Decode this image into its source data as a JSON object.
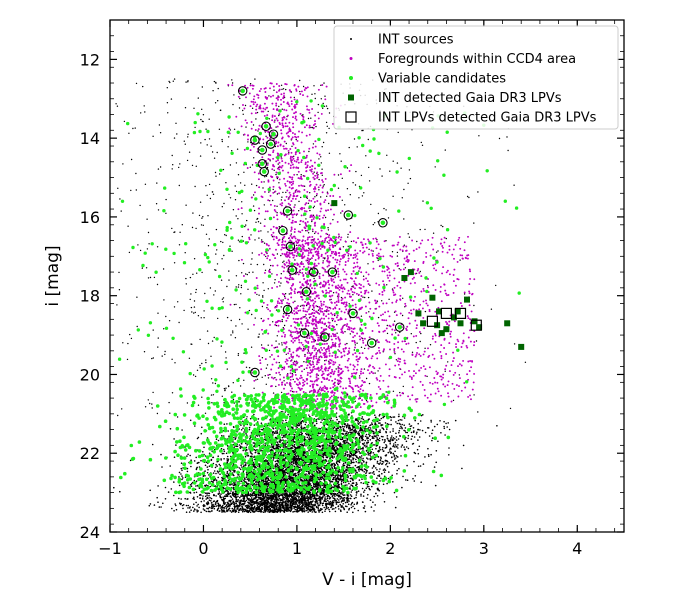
{
  "chart_data": {
    "type": "scatter",
    "xlabel": "V - i [mag]",
    "ylabel": "i [mag]",
    "xlim": [
      -1.0,
      4.5
    ],
    "ylim": [
      24,
      11
    ],
    "y_inverted": true,
    "xticks": [
      "−1",
      "0",
      "1",
      "2",
      "3",
      "4"
    ],
    "yticks": [
      "12",
      "14",
      "16",
      "18",
      "20",
      "22",
      "24"
    ],
    "legend_position": "top-right",
    "series": [
      {
        "name": "INT sources",
        "color": "#000000",
        "marker": "dot",
        "approx_count": 9000,
        "distribution_summary": [
          {
            "region": "dense red-giant/faint clump",
            "x_range": [
              0.0,
              2.2
            ],
            "y_range": [
              21.0,
              23.5
            ]
          },
          {
            "region": "sparse bright field",
            "x_range": [
              -1.0,
              4.0
            ],
            "y_range": [
              12.5,
              21.0
            ]
          }
        ]
      },
      {
        "name": "Foregrounds within CCD4 area",
        "color": "#c000c0",
        "marker": "dot",
        "approx_count": 3000,
        "distribution_summary": [
          {
            "region": "foreground plume",
            "x_range": [
              0.4,
              2.9
            ],
            "y_range": [
              12.4,
              21.0
            ]
          }
        ]
      },
      {
        "name": "Variable candidates",
        "color": "#22ee22",
        "marker": "dot",
        "approx_count": 1400,
        "distribution_summary": [
          {
            "region": "faint band",
            "x_range": [
              -0.5,
              2.8
            ],
            "y_range": [
              20.5,
              23.0
            ]
          },
          {
            "region": "scattered",
            "x_range": [
              -1.0,
              4.0
            ],
            "y_range": [
              12.0,
              20.5
            ]
          }
        ]
      },
      {
        "name": "INT detected Gaia DR3 LPVs",
        "color": "#006400",
        "marker": "square",
        "points": [
          [
            2.15,
            17.55
          ],
          [
            2.22,
            17.4
          ],
          [
            2.3,
            18.45
          ],
          [
            2.35,
            18.7
          ],
          [
            2.45,
            18.05
          ],
          [
            2.52,
            18.4
          ],
          [
            2.55,
            18.95
          ],
          [
            2.6,
            18.85
          ],
          [
            2.68,
            18.55
          ],
          [
            2.72,
            18.4
          ],
          [
            2.75,
            18.7
          ],
          [
            2.82,
            18.1
          ],
          [
            2.9,
            18.65
          ],
          [
            2.95,
            18.8
          ],
          [
            3.25,
            18.7
          ],
          [
            3.4,
            19.3
          ],
          [
            1.4,
            15.65
          ],
          [
            2.5,
            18.75
          ]
        ]
      },
      {
        "name": "INT LPVs detected Gaia DR3 LPVs",
        "color": "#000000",
        "marker": "open-square",
        "points": [
          [
            2.45,
            18.65
          ],
          [
            2.6,
            18.45
          ],
          [
            2.75,
            18.45
          ],
          [
            2.92,
            18.75
          ]
        ]
      },
      {
        "name": "circled-variables",
        "color": "#000000",
        "marker": "open-circle",
        "points": [
          [
            0.42,
            12.8
          ],
          [
            0.55,
            14.05
          ],
          [
            0.63,
            14.3
          ],
          [
            0.67,
            13.7
          ],
          [
            0.72,
            14.15
          ],
          [
            0.75,
            13.9
          ],
          [
            0.63,
            14.65
          ],
          [
            0.65,
            14.85
          ],
          [
            0.85,
            16.35
          ],
          [
            0.9,
            15.85
          ],
          [
            0.93,
            16.75
          ],
          [
            0.95,
            17.35
          ],
          [
            0.9,
            18.35
          ],
          [
            1.1,
            17.9
          ],
          [
            1.18,
            17.4
          ],
          [
            1.38,
            17.4
          ],
          [
            1.55,
            15.95
          ],
          [
            1.92,
            16.15
          ],
          [
            1.6,
            18.45
          ],
          [
            1.08,
            18.95
          ],
          [
            1.3,
            19.05
          ],
          [
            0.55,
            19.95
          ],
          [
            1.8,
            19.2
          ],
          [
            2.1,
            18.8
          ]
        ]
      }
    ]
  }
}
